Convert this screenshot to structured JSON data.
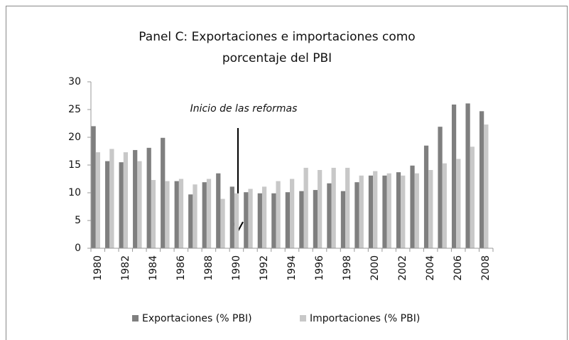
{
  "chart_data": {
    "type": "bar",
    "title": [
      "Panel C: Exportaciones e importaciones como",
      "porcentaje del PBI"
    ],
    "annotation": "Inicio de las reformas",
    "categories": [
      "1980",
      null,
      "1982",
      null,
      "1984",
      null,
      "1986",
      null,
      "1988",
      null,
      "1990",
      null,
      "1992",
      null,
      "1994",
      null,
      "1996",
      null,
      "1998",
      null,
      "2000",
      null,
      "2002",
      null,
      "2004",
      null,
      "2006",
      null,
      "2008"
    ],
    "series": [
      {
        "name": "Exportaciones (% PBI)",
        "color": "#7f7f7f",
        "values": [
          22,
          15.7,
          15.5,
          17.7,
          18.1,
          19.9,
          12.1,
          9.7,
          11.9,
          13.5,
          11.1,
          10.1,
          9.9,
          9.9,
          10.1,
          10.3,
          10.5,
          11.7,
          10.3,
          11.9,
          13.1,
          13.1,
          13.7,
          14.9,
          18.5,
          21.9,
          25.9,
          26.1,
          24.7
        ]
      },
      {
        "name": "Importaciones (% PBI)",
        "color": "#c8c8c8",
        "values": [
          17.3,
          17.9,
          17.3,
          15.7,
          12.3,
          12.1,
          12.5,
          11.5,
          12.5,
          8.9,
          9.9,
          10.7,
          11.1,
          12.1,
          12.5,
          14.5,
          14.1,
          14.5,
          14.5,
          13.1,
          13.9,
          13.5,
          13.1,
          13.5,
          14.1,
          15.3,
          16.1,
          18.3,
          22.3
        ]
      }
    ],
    "ylim": [
      0,
      30
    ],
    "yticks": [
      0,
      5,
      10,
      15,
      20,
      25,
      30
    ],
    "grid": false,
    "legend": "bottom"
  }
}
